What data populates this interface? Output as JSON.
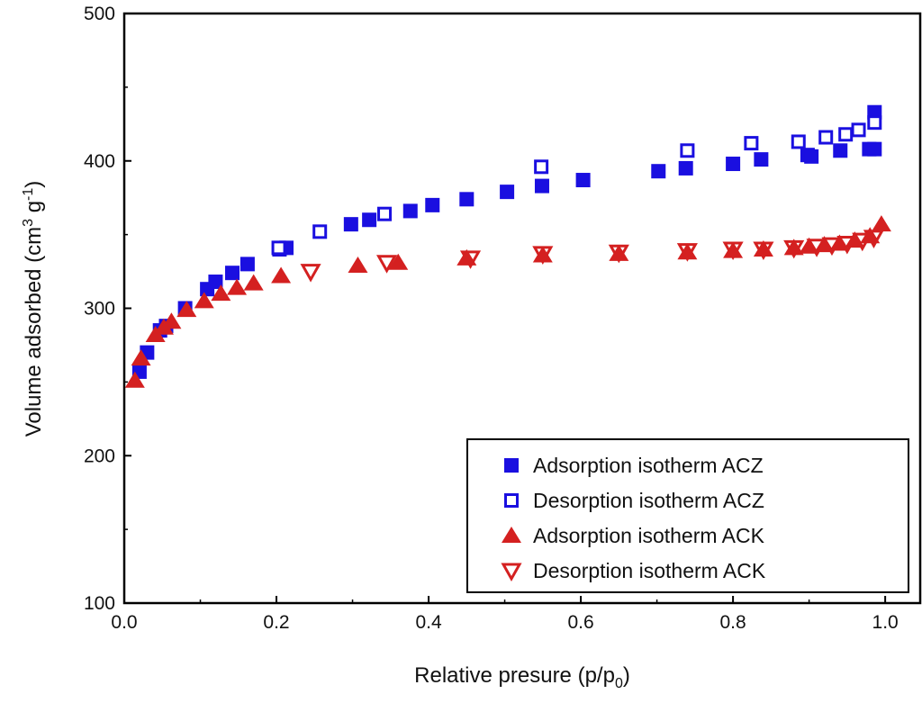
{
  "chart_data": {
    "type": "scatter",
    "title": "",
    "xlabel": {
      "main": "Relative presure (p/p",
      "sub": "0",
      "end": ")"
    },
    "ylabel": {
      "main": "Volume adsorbed (cm",
      "sup1": "3",
      "mid": " g",
      "sup2": "-1",
      "end": ")"
    },
    "xlim": [
      0,
      1.046
    ],
    "ylim": [
      100,
      500
    ],
    "xticks": [
      "0.0",
      "0.2",
      "0.4",
      "0.6",
      "0.8",
      "1.0"
    ],
    "xtick_values": [
      0,
      0.2,
      0.4,
      0.6,
      0.8,
      1.0
    ],
    "yticks": [
      "100",
      "200",
      "300",
      "400",
      "500"
    ],
    "ytick_values": [
      100,
      200,
      300,
      400,
      500
    ],
    "legend_position": "bottom-right",
    "series": [
      {
        "name": "Adsorption isotherm ACZ",
        "marker": "square-filled",
        "color": "#1a0fe0",
        "x": [
          0.02,
          0.03,
          0.047,
          0.055,
          0.08,
          0.109,
          0.12,
          0.142,
          0.162,
          0.204,
          0.213,
          0.298,
          0.322,
          0.376,
          0.405,
          0.45,
          0.503,
          0.549,
          0.603,
          0.702,
          0.738,
          0.8,
          0.837,
          0.898,
          0.903,
          0.941,
          0.979,
          0.986,
          0.986
        ],
        "y": [
          257,
          270,
          285,
          288,
          300,
          313,
          318,
          324,
          330,
          340,
          341,
          357,
          360,
          366,
          370,
          374,
          379,
          383,
          387,
          393,
          395,
          398,
          401,
          404,
          403,
          407,
          408,
          408,
          433
        ]
      },
      {
        "name": "Desorption isotherm ACZ",
        "marker": "square-open",
        "color": "#1a0fe0",
        "x": [
          0.203,
          0.257,
          0.342,
          0.548,
          0.74,
          0.824,
          0.886,
          0.922,
          0.948,
          0.965,
          0.986
        ],
        "y": [
          341,
          352,
          364,
          396,
          407,
          412,
          413,
          416,
          418,
          421,
          426
        ]
      },
      {
        "name": "Adsorption isotherm ACK",
        "marker": "triangle-up-filled",
        "color": "#d42020",
        "x": [
          0.014,
          0.022,
          0.041,
          0.052,
          0.062,
          0.082,
          0.105,
          0.127,
          0.148,
          0.17,
          0.206,
          0.307,
          0.36,
          0.45,
          0.55,
          0.65,
          0.74,
          0.8,
          0.84,
          0.88,
          0.9,
          0.92,
          0.94,
          0.96,
          0.98,
          0.995
        ],
        "y": [
          251,
          266,
          282,
          287,
          291,
          299,
          305,
          310,
          314,
          317,
          322,
          329,
          331,
          334,
          336,
          337,
          338,
          339,
          340,
          341,
          342,
          343,
          344,
          346,
          349,
          357
        ]
      },
      {
        "name": "Desorption isotherm ACK",
        "marker": "triangle-down-open",
        "color": "#d42020",
        "x": [
          0.245,
          0.345,
          0.455,
          0.55,
          0.65,
          0.74,
          0.8,
          0.84,
          0.88,
          0.91,
          0.93,
          0.95,
          0.97,
          0.985
        ],
        "y": [
          325,
          331,
          334,
          337,
          338,
          339,
          340,
          340,
          341,
          342,
          343,
          344,
          346,
          348
        ]
      }
    ]
  }
}
